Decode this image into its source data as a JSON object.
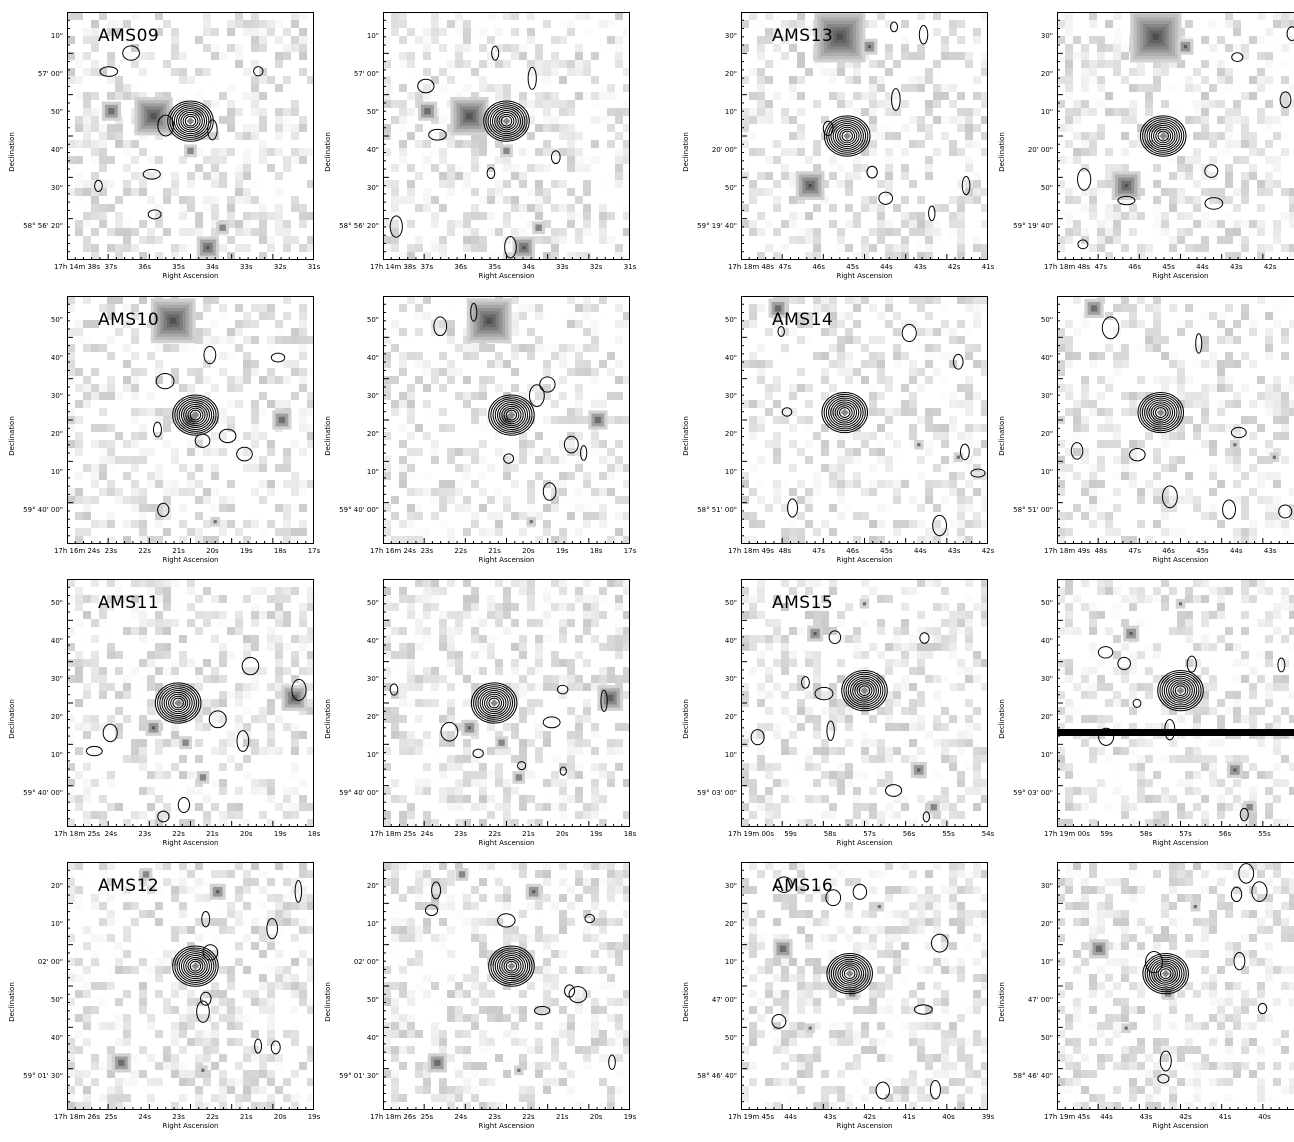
{
  "xlabel": "Right Ascension",
  "ylabel": "Declination",
  "panels": [
    {
      "name": "ams09",
      "label": "AMS09",
      "yticks": [
        "10\"",
        "57' 00\"",
        "50\"",
        "40\"",
        "30\"",
        "58° 56' 20\""
      ],
      "xticks": [
        "17h 14m 38s",
        "37s",
        "36s",
        "35s",
        "34s",
        "33s",
        "32s",
        "31s"
      ]
    },
    {
      "name": "ams09b",
      "label": "",
      "yticks": [
        "10\"",
        "57' 00\"",
        "50\"",
        "40\"",
        "30\"",
        "58° 56' 20\""
      ],
      "xticks": [
        "17h 14m 38s",
        "37s",
        "36s",
        "35s",
        "34s",
        "33s",
        "32s",
        "31s"
      ]
    },
    {
      "name": "ams13",
      "label": "AMS13",
      "yticks": [
        "30\"",
        "20\"",
        "10\"",
        "20' 00\"",
        "50\"",
        "59° 19' 40\""
      ],
      "xticks": [
        "17h 18m 48s",
        "47s",
        "46s",
        "45s",
        "44s",
        "43s",
        "42s",
        "41s"
      ]
    },
    {
      "name": "ams13b",
      "label": "",
      "yticks": [
        "30\"",
        "20\"",
        "10\"",
        "20' 00\"",
        "50\"",
        "59° 19' 40\""
      ],
      "xticks": [
        "17h 18m 48s",
        "47s",
        "46s",
        "45s",
        "44s",
        "43s",
        "42s",
        "41s"
      ]
    },
    {
      "name": "ams10",
      "label": "AMS10",
      "yticks": [
        "50\"",
        "40\"",
        "30\"",
        "20\"",
        "10\"",
        "59° 40' 00\""
      ],
      "xticks": [
        "17h 16m 24s",
        "23s",
        "22s",
        "21s",
        "20s",
        "19s",
        "18s",
        "17s"
      ]
    },
    {
      "name": "ams10b",
      "label": "",
      "yticks": [
        "50\"",
        "40\"",
        "30\"",
        "20\"",
        "10\"",
        "59° 40' 00\""
      ],
      "xticks": [
        "17h 16m 24s",
        "23s",
        "22s",
        "21s",
        "20s",
        "19s",
        "18s",
        "17s"
      ]
    },
    {
      "name": "ams14",
      "label": "AMS14",
      "yticks": [
        "50\"",
        "40\"",
        "30\"",
        "20\"",
        "10\"",
        "58° 51' 00\""
      ],
      "xticks": [
        "17h 18m 49s",
        "48s",
        "47s",
        "46s",
        "45s",
        "44s",
        "43s",
        "42s"
      ]
    },
    {
      "name": "ams14b",
      "label": "",
      "yticks": [
        "50\"",
        "40\"",
        "30\"",
        "20\"",
        "10\"",
        "58° 51' 00\""
      ],
      "xticks": [
        "17h 18m 49s",
        "48s",
        "47s",
        "46s",
        "45s",
        "44s",
        "43s",
        "42s"
      ]
    },
    {
      "name": "ams11",
      "label": "AMS11",
      "yticks": [
        "50\"",
        "40\"",
        "30\"",
        "20\"",
        "10\"",
        "59° 40' 00\""
      ],
      "xticks": [
        "17h 18m 25s",
        "24s",
        "23s",
        "22s",
        "21s",
        "20s",
        "19s",
        "18s"
      ]
    },
    {
      "name": "ams11b",
      "label": "",
      "yticks": [
        "50\"",
        "40\"",
        "30\"",
        "20\"",
        "10\"",
        "59° 40' 00\""
      ],
      "xticks": [
        "17h 18m 25s",
        "24s",
        "23s",
        "22s",
        "21s",
        "20s",
        "19s",
        "18s"
      ]
    },
    {
      "name": "ams15",
      "label": "AMS15",
      "yticks": [
        "50\"",
        "40\"",
        "30\"",
        "20\"",
        "10\"",
        "59° 03' 00\""
      ],
      "xticks": [
        "17h 19m 00s",
        "59s",
        "58s",
        "57s",
        "56s",
        "55s",
        "54s"
      ]
    },
    {
      "name": "ams15b",
      "label": "",
      "yticks": [
        "50\"",
        "40\"",
        "30\"",
        "20\"",
        "10\"",
        "59° 03' 00\""
      ],
      "xticks": [
        "17h 19m 00s",
        "59s",
        "58s",
        "57s",
        "56s",
        "55s",
        "54s"
      ]
    },
    {
      "name": "ams12",
      "label": "AMS12",
      "yticks": [
        "20\"",
        "10\"",
        "02' 00\"",
        "50\"",
        "40\"",
        "59° 01' 30\""
      ],
      "xticks": [
        "17h 18m 26s",
        "25s",
        "24s",
        "23s",
        "22s",
        "21s",
        "20s",
        "19s"
      ]
    },
    {
      "name": "ams12b",
      "label": "",
      "yticks": [
        "20\"",
        "10\"",
        "02' 00\"",
        "50\"",
        "40\"",
        "59° 01' 30\""
      ],
      "xticks": [
        "17h 18m 26s",
        "25s",
        "24s",
        "23s",
        "22s",
        "21s",
        "20s",
        "19s"
      ]
    },
    {
      "name": "ams16",
      "label": "AMS16",
      "yticks": [
        "30\"",
        "20\"",
        "10\"",
        "47' 00\"",
        "50\"",
        "58° 46' 40\""
      ],
      "xticks": [
        "17h 19m 45s",
        "44s",
        "43s",
        "42s",
        "41s",
        "40s",
        "39s"
      ]
    },
    {
      "name": "ams16b",
      "label": "",
      "yticks": [
        "30\"",
        "20\"",
        "10\"",
        "47' 00\"",
        "50\"",
        "58° 46' 40\""
      ],
      "xticks": [
        "17h 19m 45s",
        "44s",
        "43s",
        "42s",
        "41s",
        "40s",
        "39s"
      ]
    }
  ]
}
